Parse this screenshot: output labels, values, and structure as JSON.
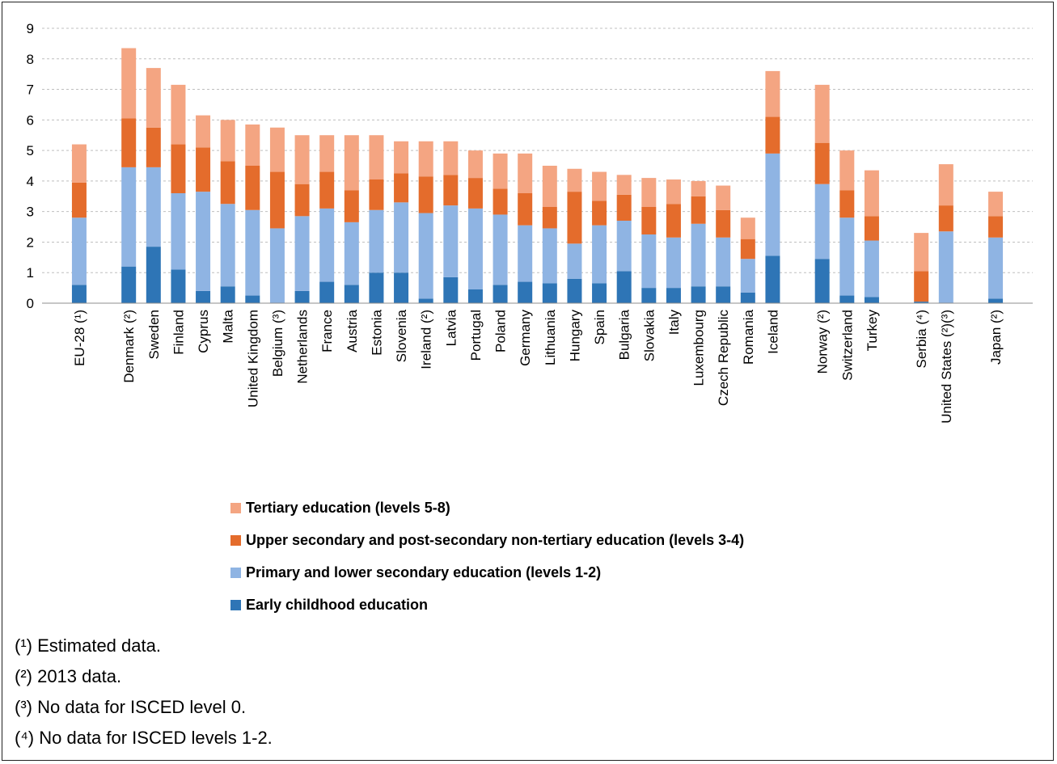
{
  "colors": {
    "early": "#2e75b6",
    "primary": "#8fb4e3",
    "upper": "#e46c2c",
    "tertiary": "#f4a582",
    "grid": "#bfbfbf"
  },
  "chart_data": {
    "type": "bar",
    "stacked": true,
    "title": "",
    "xlabel": "",
    "ylabel": "",
    "ylim": [
      0,
      9
    ],
    "yticks": [
      "0",
      "1",
      "2",
      "3",
      "4",
      "5",
      "6",
      "7",
      "8",
      "9"
    ],
    "grid": "horizontal dashed",
    "legend_position": "bottom",
    "categories": [
      "EU-28 (¹)",
      "Denmark (²)",
      "Sweden",
      "Finland",
      "Cyprus",
      "Malta",
      "United Kingdom",
      "Belgium (³)",
      "Netherlands",
      "France",
      "Austria",
      "Estonia",
      "Slovenia",
      "Ireland (²)",
      "Latvia",
      "Portugal",
      "Poland",
      "Germany",
      "Lithuania",
      "Hungary",
      "Spain",
      "Bulgaria",
      "Slovakia",
      "Italy",
      "Luxembourg",
      "Czech Republic",
      "Romania",
      "Iceland",
      "Norway (²)",
      "Switzerland",
      "Turkey",
      "Serbia (⁴)",
      "United States (²)(³)",
      "Japan (²)"
    ],
    "series": [
      {
        "name": "Early childhood education",
        "values": [
          0.6,
          1.2,
          1.85,
          1.1,
          0.4,
          0.55,
          0.25,
          0,
          0.4,
          0.7,
          0.6,
          1.0,
          1.0,
          0.15,
          0.85,
          0.45,
          0.6,
          0.7,
          0.65,
          0.8,
          0.65,
          1.05,
          0.5,
          0.5,
          0.55,
          0.55,
          0.35,
          1.55,
          1.45,
          0.25,
          0.2,
          0.05,
          0,
          0.15
        ]
      },
      {
        "name": "Primary and lower secondary education (levels 1-2)",
        "values": [
          2.2,
          3.25,
          2.6,
          2.5,
          3.25,
          2.7,
          2.8,
          2.45,
          2.45,
          2.4,
          2.05,
          2.05,
          2.3,
          2.8,
          2.35,
          2.65,
          2.3,
          1.85,
          1.8,
          1.15,
          1.9,
          1.65,
          1.75,
          1.65,
          2.05,
          1.6,
          1.1,
          3.35,
          2.45,
          2.55,
          1.85,
          0,
          2.35,
          2.0
        ]
      },
      {
        "name": "Upper secondary and post-secondary non-tertiary education (levels 3-4)",
        "values": [
          1.15,
          1.6,
          1.3,
          1.6,
          1.45,
          1.4,
          1.45,
          1.85,
          1.05,
          1.2,
          1.05,
          1.0,
          0.95,
          1.2,
          1.0,
          1.0,
          0.85,
          1.05,
          0.7,
          1.7,
          0.8,
          0.85,
          0.9,
          1.1,
          0.9,
          0.9,
          0.65,
          1.2,
          1.35,
          0.9,
          0.8,
          1.0,
          0.85,
          0.7
        ]
      },
      {
        "name": "Tertiary education (levels 5-8)",
        "values": [
          1.25,
          2.3,
          1.95,
          1.95,
          1.05,
          1.35,
          1.35,
          1.45,
          1.6,
          1.2,
          1.8,
          1.45,
          1.05,
          1.15,
          1.1,
          0.9,
          1.15,
          1.3,
          1.35,
          0.75,
          0.95,
          0.65,
          0.95,
          0.8,
          0.5,
          0.8,
          0.7,
          1.5,
          1.9,
          1.3,
          1.5,
          1.25,
          1.35,
          0.8
        ]
      }
    ]
  },
  "legend": [
    {
      "label": "Tertiary education (levels 5-8)",
      "color": "#f4a582"
    },
    {
      "label": "Upper secondary and post-secondary non-tertiary education (levels 3-4)",
      "color": "#e46c2c"
    },
    {
      "label": "Primary and lower secondary education (levels 1-2)",
      "color": "#8fb4e3"
    },
    {
      "label": "Early childhood education",
      "color": "#2e75b6"
    }
  ],
  "notes": [
    "(¹) Estimated data.",
    "(²) 2013 data.",
    "(³) No data for ISCED level 0.",
    "(⁴) No data for ISCED levels 1-2."
  ]
}
